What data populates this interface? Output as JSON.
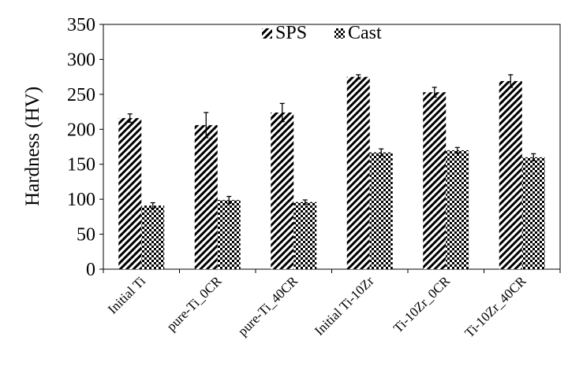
{
  "chart_data": {
    "type": "bar",
    "title": "",
    "xlabel": "",
    "ylabel": "Hardness (HV)",
    "ylim": [
      0,
      350
    ],
    "yticks": [
      0,
      50,
      100,
      150,
      200,
      250,
      300,
      350
    ],
    "grid": false,
    "legend_position": "top-center",
    "categories": [
      "Initial Ti",
      "pure-Ti_0CR",
      "pure-Ti_40CR",
      "Initial Ti-10Zr",
      "Ti-10Zr_0CR",
      "Ti-10Zr_40CR"
    ],
    "series": [
      {
        "name": "SPS",
        "pattern": "diagonal-stripes",
        "values": [
          216,
          206,
          224,
          275,
          253,
          269
        ],
        "errors": [
          6,
          18,
          13,
          3,
          7,
          9
        ]
      },
      {
        "name": "Cast",
        "pattern": "checkerboard",
        "values": [
          91,
          99,
          96,
          167,
          170,
          160
        ],
        "errors": [
          4,
          5,
          3,
          5,
          4,
          5
        ]
      }
    ]
  }
}
